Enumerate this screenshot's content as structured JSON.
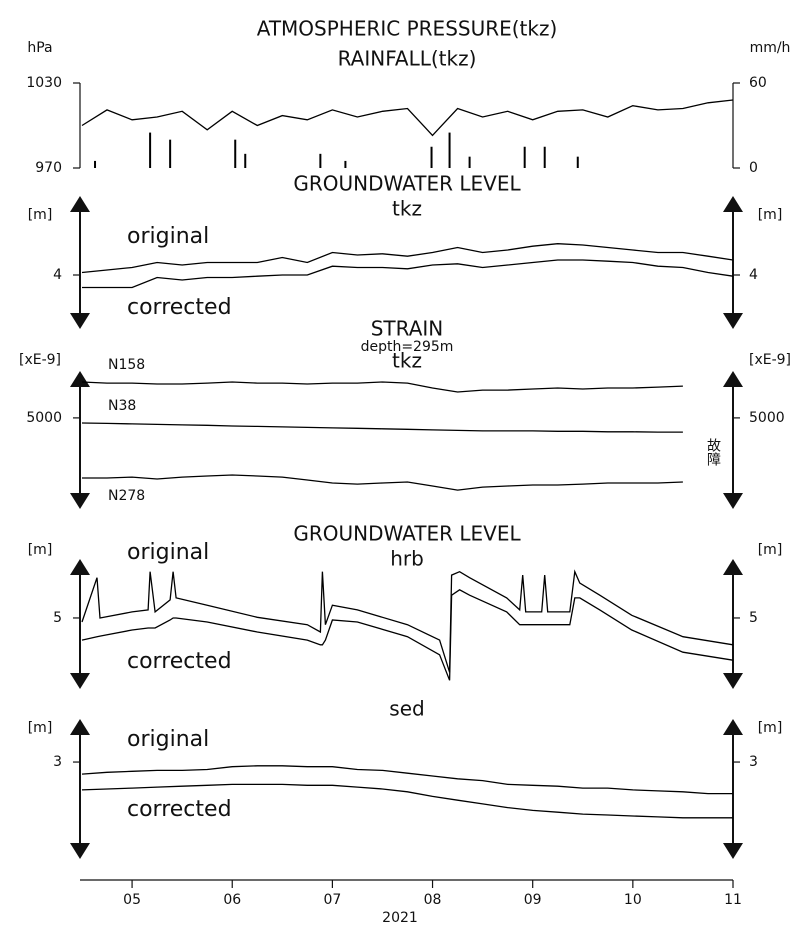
{
  "chart_data": [
    {
      "type": "line",
      "title": "ATMOSPHERIC PRESSURE(tkz)",
      "subtitle": "RAINFALL(tkz)",
      "ylabel": "hPa",
      "y2label": "mm/h",
      "ylim": [
        970,
        1030
      ],
      "yticks": [
        970,
        1030
      ],
      "y2lim": [
        0,
        60
      ],
      "y2ticks": [
        0,
        60
      ],
      "x": [
        4.5,
        4.75,
        5,
        5.25,
        5.5,
        5.75,
        6,
        6.25,
        6.5,
        6.75,
        7,
        7.25,
        7.5,
        7.75,
        8,
        8.25,
        8.5,
        8.75,
        9,
        9.25,
        9.5,
        9.75,
        10,
        10.25,
        10.5,
        10.75,
        11
      ],
      "series": [
        {
          "color": "#000000",
          "values": [
            1000,
            1011,
            1004,
            1006,
            1010,
            997,
            1010,
            1000,
            1007,
            1004,
            1011,
            1006,
            1010,
            1012,
            993,
            1012,
            1006,
            1010,
            1004,
            1010,
            1011,
            1006,
            1014,
            1011,
            1012,
            1016,
            1018
          ]
        },
        {
          "type": "bar",
          "axis": "y2",
          "color": "#000000",
          "x": [
            4.63,
            5.18,
            5.38,
            6.03,
            6.13,
            6.88,
            7.13,
            7.99,
            8.17,
            8.37,
            8.92,
            9.12,
            9.45
          ],
          "values": [
            5,
            25,
            20,
            20,
            10,
            10,
            5,
            15,
            25,
            8,
            15,
            15,
            8
          ]
        }
      ]
    },
    {
      "type": "line",
      "title": "GROUNDWATER LEVEL",
      "subtitle": "tkz",
      "ylabel": "[m]",
      "y2label": "[m]",
      "ylim": [
        3.6,
        4.6
      ],
      "yticks": [
        4
      ],
      "y2lim": [
        3.6,
        4.6
      ],
      "y2ticks": [
        4
      ],
      "x": [
        4.5,
        4.75,
        5,
        5.25,
        5.5,
        5.75,
        6,
        6.25,
        6.5,
        6.75,
        7,
        7.25,
        7.5,
        7.75,
        8,
        8.25,
        8.5,
        8.75,
        9,
        9.25,
        9.5,
        9.75,
        10,
        10.25,
        10.5,
        10.75,
        11
      ],
      "series": [
        {
          "name": "original",
          "color": "#000000",
          "values": [
            4.02,
            4.04,
            4.06,
            4.1,
            4.08,
            4.1,
            4.1,
            4.1,
            4.14,
            4.1,
            4.18,
            4.16,
            4.17,
            4.15,
            4.18,
            4.22,
            4.18,
            4.2,
            4.23,
            4.25,
            4.24,
            4.22,
            4.2,
            4.18,
            4.18,
            4.15,
            4.12
          ]
        },
        {
          "name": "corrected",
          "color": "#000000",
          "values": [
            3.9,
            3.9,
            3.9,
            3.98,
            3.96,
            3.98,
            3.98,
            3.99,
            4.0,
            4.0,
            4.07,
            4.06,
            4.06,
            4.05,
            4.08,
            4.09,
            4.06,
            4.08,
            4.1,
            4.12,
            4.12,
            4.11,
            4.1,
            4.07,
            4.06,
            4.02,
            3.99
          ]
        }
      ]
    },
    {
      "type": "line",
      "title": "STRAIN",
      "subtitle": "depth=295m",
      "station": "tkz",
      "annotation": "故障",
      "ylabel": "[xE-9]",
      "y2label": "[xE-9]",
      "ylim": [
        4330,
        5330
      ],
      "yticks": [
        5000
      ],
      "y2lim": [
        4330,
        5330
      ],
      "y2ticks": [
        5000
      ],
      "x": [
        4.5,
        4.75,
        5,
        5.25,
        5.5,
        5.75,
        6,
        6.25,
        6.5,
        6.75,
        7,
        7.25,
        7.5,
        7.75,
        8,
        8.25,
        8.5,
        8.75,
        9,
        9.25,
        9.5,
        9.75,
        10,
        10.25,
        10.5,
        10.75,
        11
      ],
      "series": [
        {
          "name": "N158",
          "color": "#000000",
          "values": [
            5276,
            5268,
            5268,
            5261,
            5261,
            5268,
            5276,
            5268,
            5268,
            5261,
            5268,
            5268,
            5276,
            5268,
            5230,
            5199,
            5214,
            5214,
            5222,
            5230,
            5222,
            5230,
            5230,
            5237,
            5245,
            null,
            null
          ]
        },
        {
          "name": "N38",
          "color": "#000000",
          "values": [
            4961,
            4958,
            4954,
            4950,
            4946,
            4943,
            4938,
            4935,
            4931,
            4927,
            4923,
            4920,
            4916,
            4912,
            4908,
            4904,
            4900,
            4900,
            4900,
            4897,
            4897,
            4893,
            4893,
            4891,
            4891,
            null,
            null
          ]
        },
        {
          "name": "N278",
          "color": "#000000",
          "values": [
            4538,
            4538,
            4545,
            4530,
            4545,
            4553,
            4561,
            4553,
            4545,
            4522,
            4499,
            4491,
            4499,
            4507,
            4476,
            4445,
            4468,
            4476,
            4484,
            4484,
            4491,
            4499,
            4499,
            4499,
            4507,
            null,
            null
          ]
        }
      ]
    },
    {
      "type": "line",
      "title": "GROUNDWATER LEVEL",
      "subtitle": "hrb",
      "ylabel": "[m]",
      "y2label": "[m]",
      "ylim": [
        4.0,
        5.82
      ],
      "yticks": [
        5
      ],
      "y2lim": [
        4.0,
        5.82
      ],
      "y2ticks": [
        5
      ],
      "x": [
        4.5,
        4.65,
        4.68,
        5.0,
        5.16,
        5.18,
        5.23,
        5.38,
        5.41,
        5.44,
        5.75,
        6.25,
        6.75,
        6.88,
        6.9,
        6.93,
        7.0,
        7.25,
        7.75,
        8.07,
        8.17,
        8.19,
        8.27,
        8.37,
        8.74,
        8.87,
        8.9,
        8.93,
        9.09,
        9.12,
        9.15,
        9.37,
        9.42,
        9.47,
        9.67,
        9.99,
        10.5,
        11.0
      ],
      "series": [
        {
          "name": "original",
          "color": "#000000",
          "values": [
            4.94,
            5.6,
            5.0,
            5.09,
            5.12,
            5.69,
            5.09,
            5.27,
            5.69,
            5.3,
            5.19,
            5.01,
            4.9,
            4.79,
            5.69,
            4.9,
            5.19,
            5.12,
            4.9,
            4.67,
            4.19,
            5.64,
            5.69,
            5.6,
            5.3,
            5.12,
            5.64,
            5.09,
            5.09,
            5.64,
            5.09,
            5.09,
            5.69,
            5.52,
            5.34,
            5.04,
            4.72,
            4.6
          ]
        },
        {
          "name": "corrected",
          "color": "#000000",
          "values": [
            4.67,
            4.72,
            4.73,
            4.82,
            4.85,
            4.85,
            4.85,
            4.97,
            5.0,
            5.0,
            4.94,
            4.79,
            4.67,
            4.6,
            4.6,
            4.67,
            4.97,
            4.94,
            4.72,
            4.45,
            4.07,
            5.34,
            5.42,
            5.34,
            5.09,
            4.9,
            4.9,
            4.9,
            4.9,
            4.9,
            4.9,
            4.9,
            5.3,
            5.3,
            5.12,
            4.82,
            4.49,
            4.37
          ]
        }
      ]
    },
    {
      "type": "line",
      "subtitle": "sed",
      "ylabel": "[m]",
      "y2label": "[m]",
      "ylim": [
        2.0,
        3.42
      ],
      "yticks": [
        3
      ],
      "y2lim": [
        2.0,
        3.42
      ],
      "y2ticks": [
        3
      ],
      "xlim": [
        4.48,
        11
      ],
      "xlabel": "2021",
      "xticks": [
        {
          "value": 5,
          "label": "05"
        },
        {
          "value": 6,
          "label": "06"
        },
        {
          "value": 7,
          "label": "07"
        },
        {
          "value": 8,
          "label": "08"
        },
        {
          "value": 9,
          "label": "09"
        },
        {
          "value": 10,
          "label": "10"
        },
        {
          "value": 11,
          "label": "11"
        }
      ],
      "x": [
        4.5,
        4.75,
        5,
        5.25,
        5.5,
        5.75,
        6,
        6.25,
        6.5,
        6.75,
        7,
        7.25,
        7.5,
        7.75,
        8,
        8.25,
        8.5,
        8.75,
        9,
        9.25,
        9.5,
        9.75,
        10,
        10.25,
        10.5,
        10.75,
        11
      ],
      "series": [
        {
          "name": "original",
          "color": "#000000",
          "values": [
            2.87,
            2.89,
            2.9,
            2.91,
            2.91,
            2.92,
            2.95,
            2.96,
            2.96,
            2.95,
            2.95,
            2.92,
            2.91,
            2.88,
            2.85,
            2.82,
            2.8,
            2.76,
            2.75,
            2.74,
            2.72,
            2.72,
            2.7,
            2.69,
            2.68,
            2.66,
            2.66
          ]
        },
        {
          "name": "corrected",
          "color": "#000000",
          "values": [
            2.7,
            2.71,
            2.72,
            2.73,
            2.74,
            2.75,
            2.76,
            2.76,
            2.76,
            2.75,
            2.75,
            2.73,
            2.71,
            2.68,
            2.63,
            2.59,
            2.55,
            2.51,
            2.48,
            2.46,
            2.44,
            2.43,
            2.42,
            2.41,
            2.4,
            2.4,
            2.4
          ]
        }
      ]
    }
  ]
}
